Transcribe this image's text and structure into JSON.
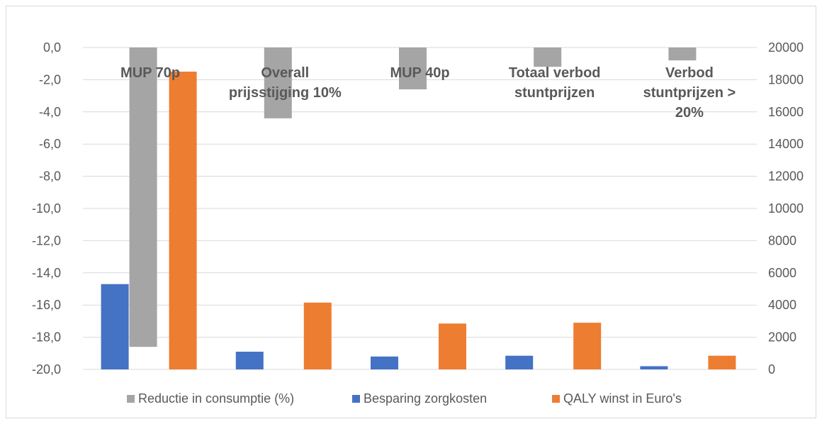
{
  "chart_data": {
    "type": "bar",
    "categories": [
      [
        "MUP 70p"
      ],
      [
        "Overall",
        "prijsstijging 10%"
      ],
      [
        "MUP 40p"
      ],
      [
        "Totaal verbod",
        "stuntprijzen"
      ],
      [
        "Verbod",
        "stuntprijzen >",
        "20%"
      ]
    ],
    "series": [
      {
        "name": "Reductie in consumptie (%)",
        "axis": "left",
        "color": "#a5a5a5",
        "values": [
          -18.6,
          -4.4,
          -2.6,
          -1.2,
          -0.8
        ]
      },
      {
        "name": "Besparing zorgkosten",
        "axis": "right",
        "color": "#4472c4",
        "values": [
          5300,
          1100,
          800,
          850,
          200
        ]
      },
      {
        "name": "QALY winst in Euro's",
        "axis": "right",
        "color": "#ed7d31",
        "values": [
          18500,
          4150,
          2850,
          2900,
          850
        ]
      }
    ],
    "left_axis": {
      "min": -20,
      "max": 0,
      "step": 2,
      "decimals": 1,
      "decimal_sep": ","
    },
    "right_axis": {
      "min": 0,
      "max": 20000,
      "step": 2000
    },
    "grid": true,
    "legend_position": "bottom"
  }
}
